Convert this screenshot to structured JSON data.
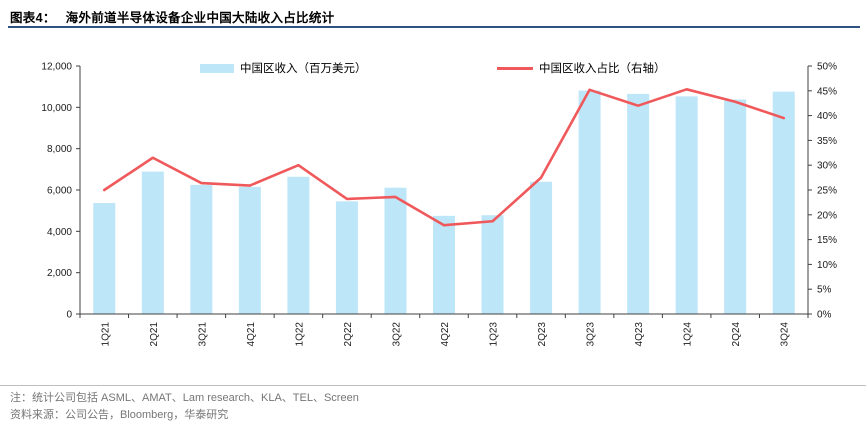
{
  "header": {
    "label": "图表4：",
    "title": "海外前道半导体设备企业中国大陆收入占比统计"
  },
  "legend": {
    "bar_label": "中国区收入（百万美元）",
    "line_label": "中国区收入占比（右轴）"
  },
  "colors": {
    "bar": "#bde6f8",
    "line": "#f0595b",
    "title_rule": "#2f5380",
    "axis": "#404040",
    "tick_text": "#1a1a1a"
  },
  "chart_data": {
    "type": "bar",
    "subtype": "bar+line combo, line on secondary axis",
    "categories": [
      "1Q21",
      "2Q21",
      "3Q21",
      "4Q21",
      "1Q22",
      "2Q22",
      "3Q22",
      "4Q22",
      "1Q23",
      "2Q23",
      "3Q23",
      "4Q23",
      "1Q24",
      "2Q24",
      "3Q24"
    ],
    "series": [
      {
        "name": "中国区收入（百万美元）",
        "type": "bar",
        "axis": "left",
        "values": [
          5370,
          6890,
          6250,
          6150,
          6640,
          5450,
          6110,
          4750,
          4780,
          6400,
          10810,
          10650,
          10530,
          10380,
          10760
        ]
      },
      {
        "name": "中国区收入占比（右轴）",
        "type": "line",
        "axis": "right",
        "values": [
          25,
          31.5,
          26.4,
          25.9,
          30,
          23.2,
          23.6,
          17.9,
          18.7,
          27.5,
          45.2,
          42,
          45.3,
          42.8,
          39.5
        ]
      }
    ],
    "left_axis": {
      "min": 0,
      "max": 12000,
      "step": 2000,
      "tick_labels": [
        "0",
        "2,000",
        "4,000",
        "6,000",
        "8,000",
        "10,000",
        "12,000"
      ]
    },
    "right_axis": {
      "min": 0,
      "max": 50,
      "step": 5,
      "tick_labels": [
        "0%",
        "5%",
        "10%",
        "15%",
        "20%",
        "25%",
        "30%",
        "35%",
        "40%",
        "45%",
        "50%"
      ]
    },
    "grid": false,
    "legend_position": "top"
  },
  "notes": {
    "note": "注：统计公司包括 ASML、AMAT、Lam research、KLA、TEL、Screen",
    "source": "资料来源：公司公告，Bloomberg，华泰研究"
  }
}
